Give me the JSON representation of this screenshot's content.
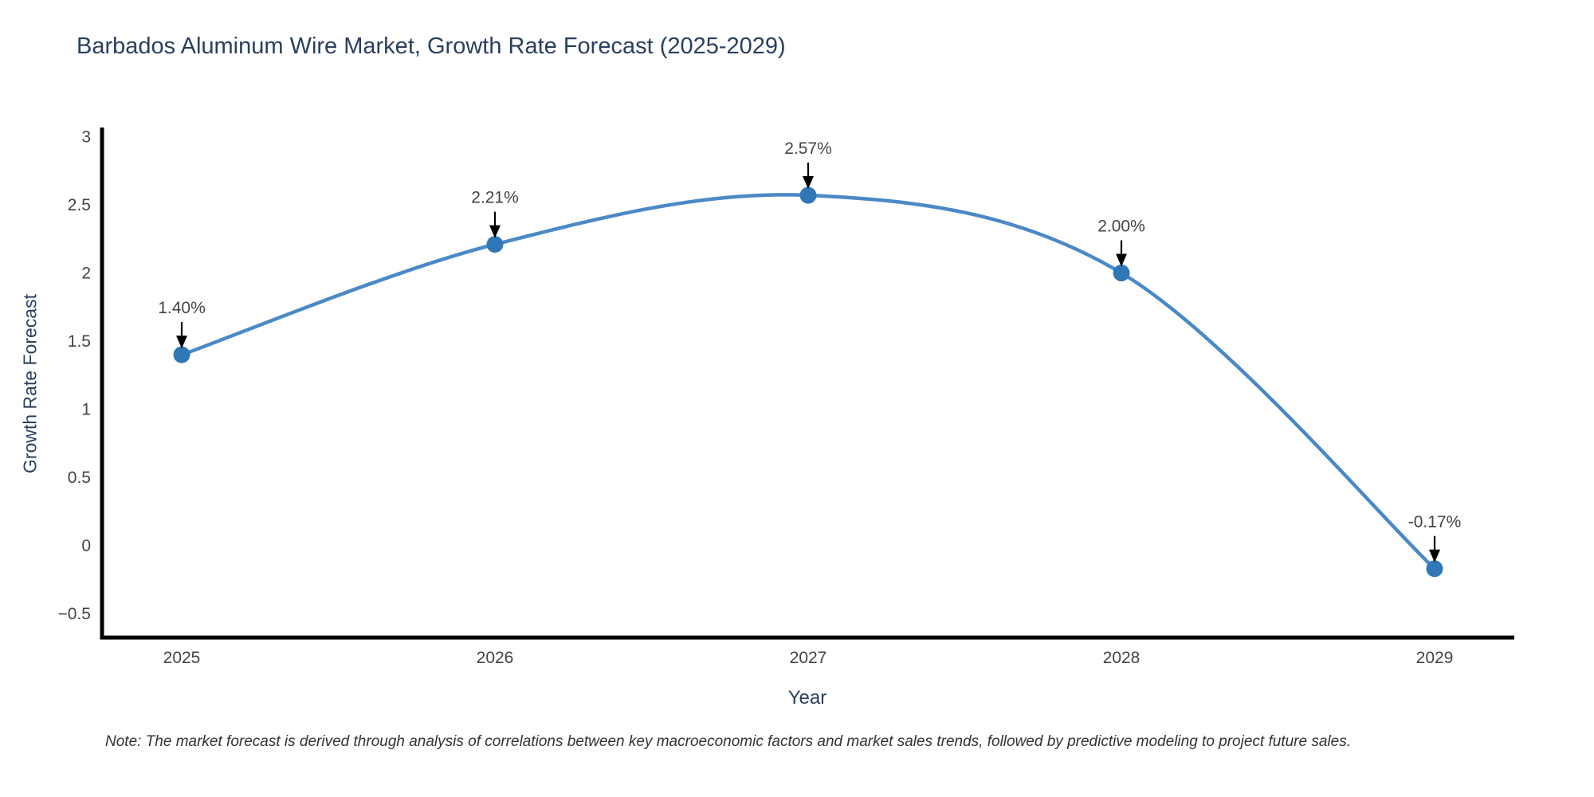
{
  "page": {
    "background": "#ffffff"
  },
  "chart_data": {
    "type": "line",
    "title": "Barbados Aluminum Wire Market, Growth Rate Forecast (2025-2029)",
    "xlabel": "Year",
    "ylabel": "Growth Rate Forecast",
    "x": [
      "2025",
      "2026",
      "2027",
      "2028",
      "2029"
    ],
    "series": [
      {
        "name": "Growth Rate Forecast",
        "values": [
          1.4,
          2.21,
          2.57,
          2.0,
          -0.17
        ]
      }
    ],
    "data_labels": [
      "1.40%",
      "2.21%",
      "2.57%",
      "2.00%",
      "-0.17%"
    ],
    "yticks": [
      3,
      2.5,
      2,
      1.5,
      1,
      0.5,
      0,
      -0.5
    ],
    "ylim": [
      -0.68,
      3.07
    ],
    "line_shape": "spline",
    "grid": false,
    "legend_position": "none",
    "annotation_style": "arrow-down-to-point",
    "colors": {
      "line": "#4a89c6",
      "marker": "#2f77b6",
      "axis_line": "#000000",
      "title_text": "#2a3f5f",
      "tick_text": "#444444",
      "annotation_text": "#444444",
      "arrow": "#000000",
      "note_text": "#333333",
      "background": "#ffffff"
    }
  },
  "note": "Note: The market forecast is derived through analysis of correlations between key macroeconomic factors and market sales trends, followed by predictive modeling to project future sales."
}
